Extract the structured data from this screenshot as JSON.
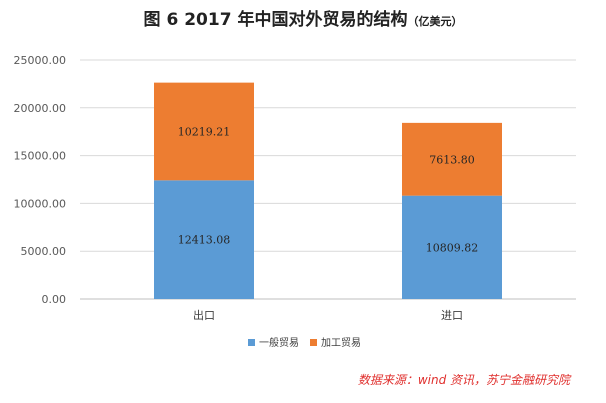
{
  "title": "图 6  2017 年中国对外贸易的结构",
  "title_unit": "（亿美元）",
  "source": "数据来源：wind 资讯，苏宁金融研究院",
  "chart_data": {
    "type": "bar",
    "stacked": true,
    "categories": [
      "出口",
      "进口"
    ],
    "series": [
      {
        "name": "一般贸易",
        "values": [
          12413.08,
          10809.82
        ],
        "labels": [
          "12413.08",
          "10809.82"
        ],
        "color": "#5b9bd5"
      },
      {
        "name": "加工贸易",
        "values": [
          10219.21,
          7613.8
        ],
        "labels": [
          "10219.21",
          "7613.80"
        ],
        "color": "#ed7d31"
      }
    ],
    "ylim": [
      0,
      25000
    ],
    "yticks": [
      0,
      5000,
      10000,
      15000,
      20000,
      25000
    ],
    "ytick_labels": [
      "0.00",
      "5000.00",
      "10000.00",
      "15000.00",
      "20000.00",
      "25000.00"
    ],
    "grid": true,
    "legend_position": "bottom"
  }
}
